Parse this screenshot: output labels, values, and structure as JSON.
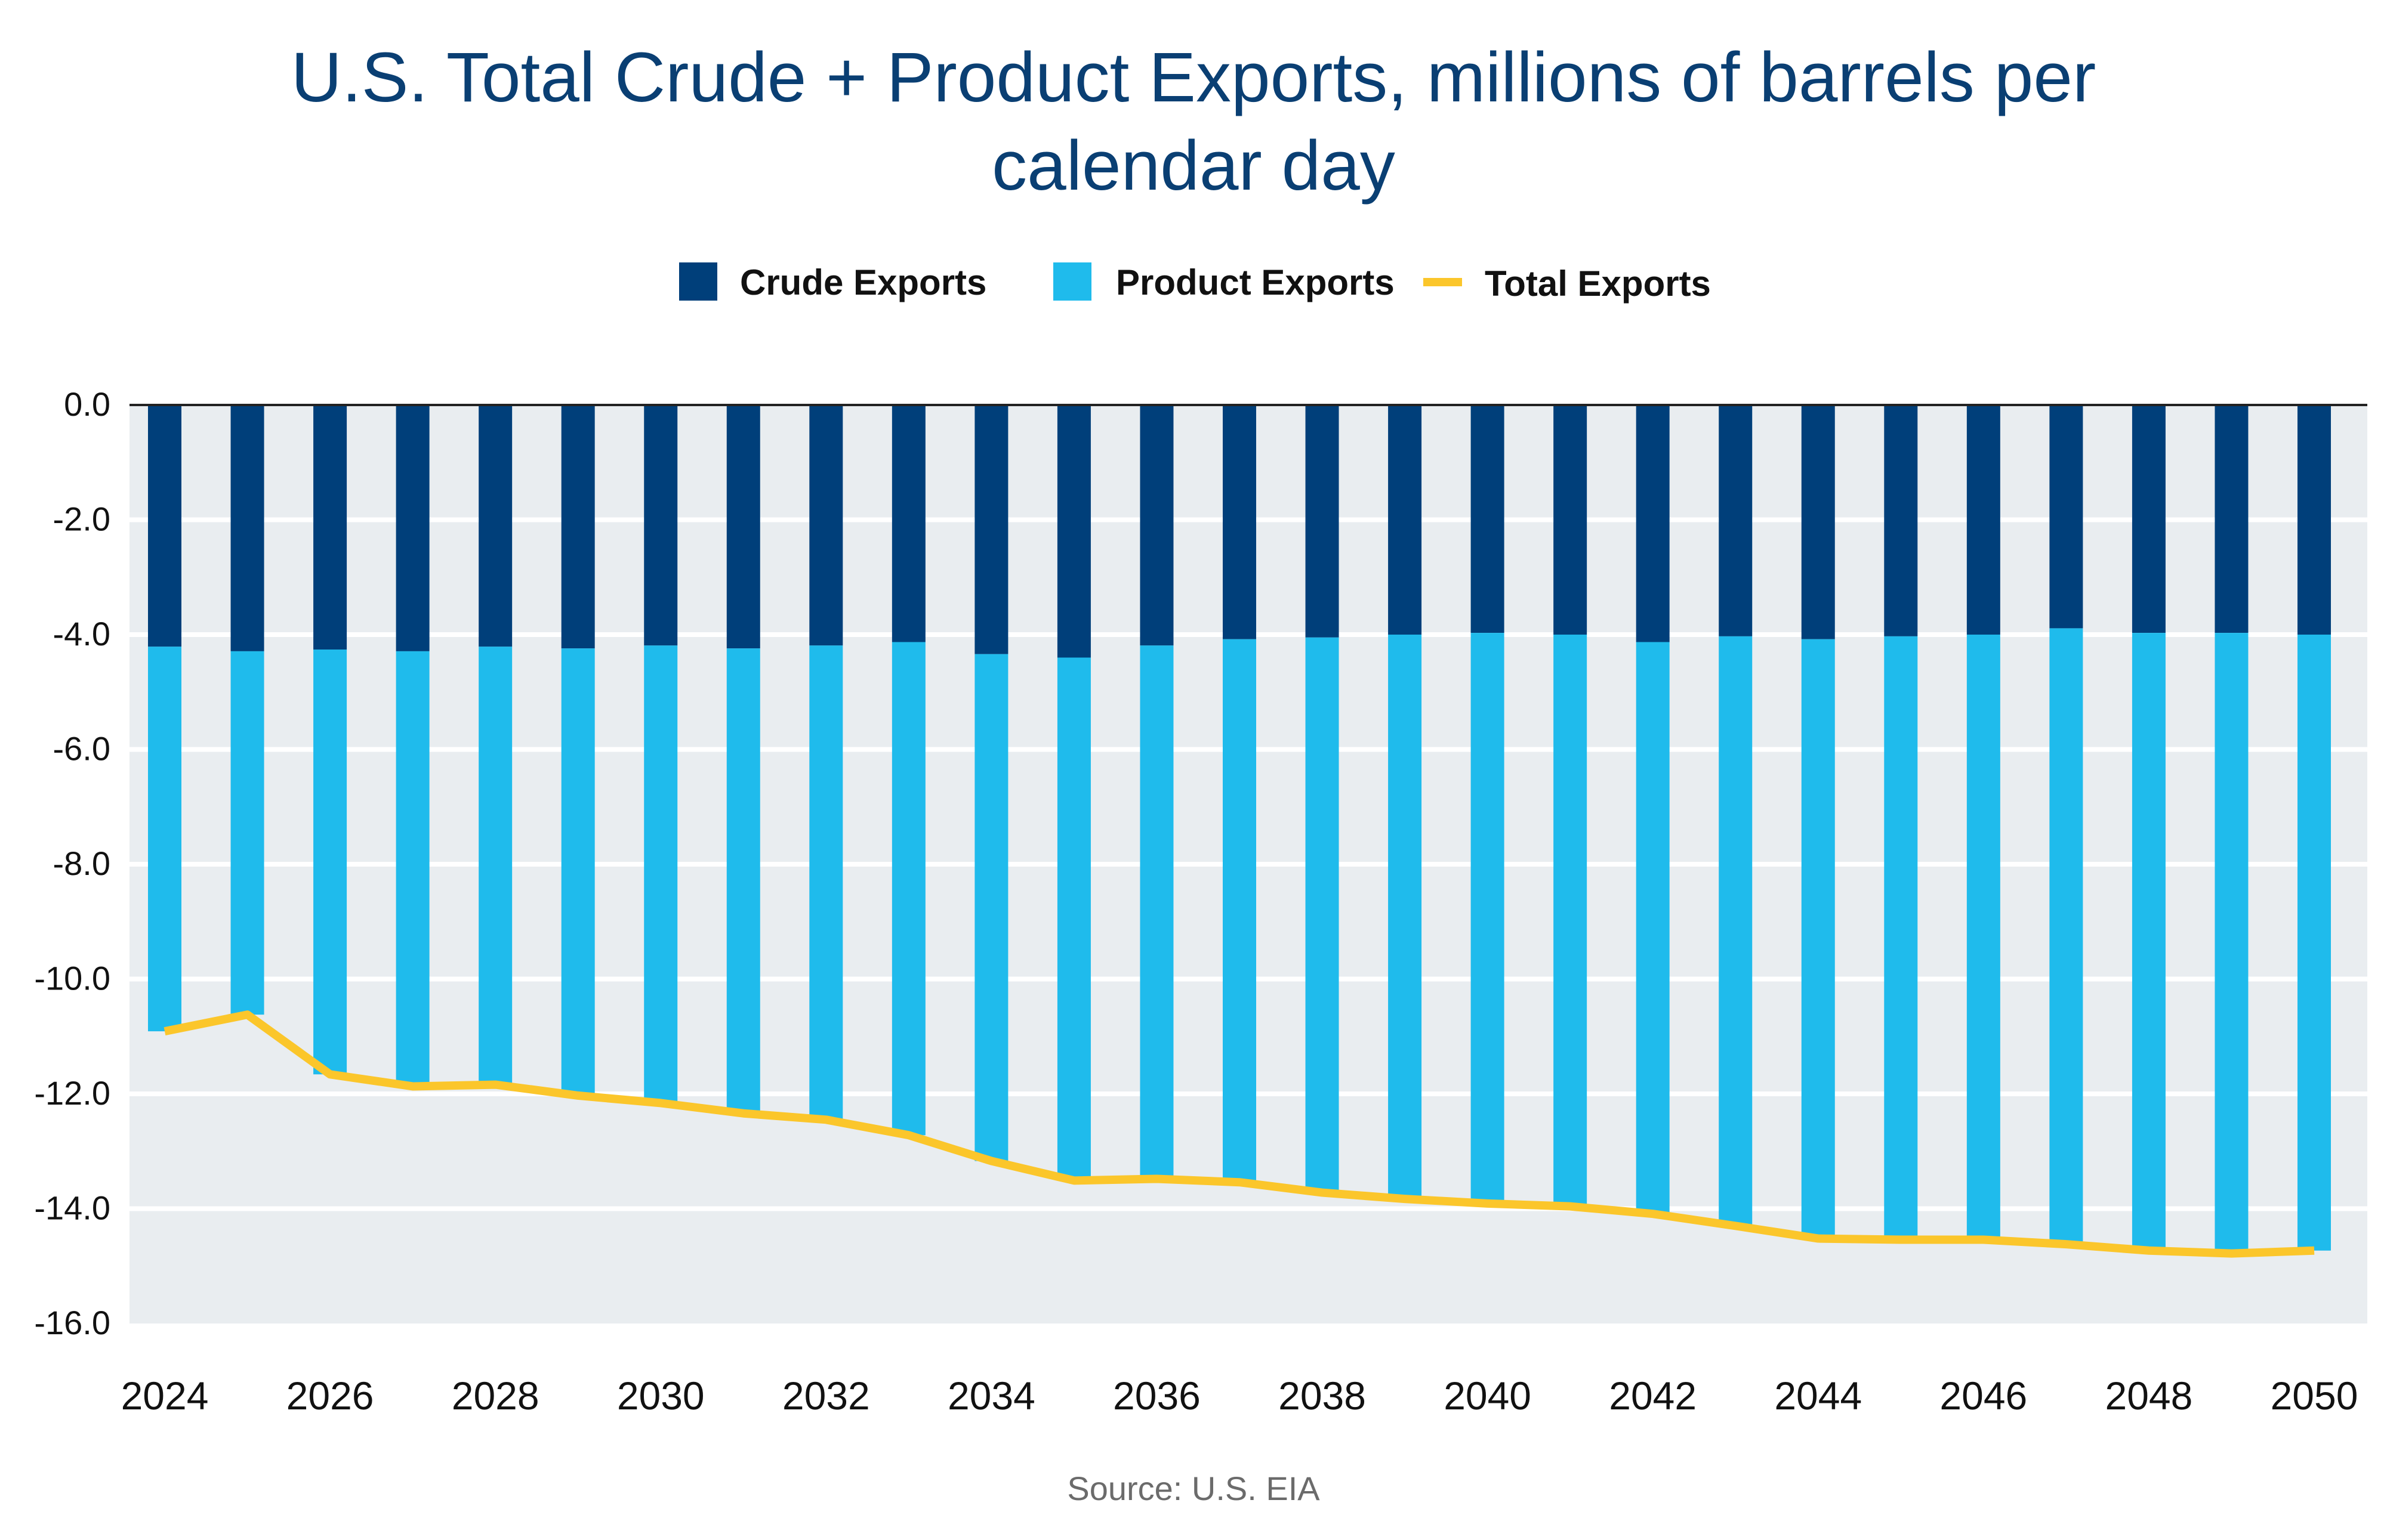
{
  "chart_data": {
    "type": "bar",
    "stacked": true,
    "title_lines": [
      "U.S.  Total Crude + Product Exports, millions of barrels per",
      "calendar day"
    ],
    "source": "Source: U.S. EIA",
    "xlabel": "",
    "ylabel": "",
    "ylim": [
      -16,
      0
    ],
    "yticks": [
      "0.0",
      "-2.0",
      "-4.0",
      "-6.0",
      "-8.0",
      "-10.0",
      "-12.0",
      "-14.0",
      "-16.0"
    ],
    "ytick_values": [
      0,
      -2,
      -4,
      -6,
      -8,
      -10,
      -12,
      -14,
      -16
    ],
    "grid": true,
    "legend_placement": "top",
    "categories": [
      2024,
      2025,
      2026,
      2027,
      2028,
      2029,
      2030,
      2031,
      2032,
      2033,
      2034,
      2035,
      2036,
      2037,
      2038,
      2039,
      2040,
      2041,
      2042,
      2043,
      2044,
      2045,
      2046,
      2047,
      2048,
      2049,
      2050
    ],
    "xtick_labels": [
      "2024",
      "2026",
      "2028",
      "2030",
      "2032",
      "2034",
      "2036",
      "2038",
      "2040",
      "2042",
      "2044",
      "2046",
      "2048",
      "2050"
    ],
    "series": [
      {
        "name": "Crude Exports",
        "kind": "bar",
        "color": "#003f7a",
        "values": [
          -4.21,
          -4.29,
          -4.26,
          -4.29,
          -4.21,
          -4.24,
          -4.19,
          -4.24,
          -4.19,
          -4.13,
          -4.34,
          -4.4,
          -4.19,
          -4.08,
          -4.05,
          -4.0,
          -3.97,
          -4.0,
          -4.13,
          -4.03,
          -4.08,
          -4.03,
          -4.0,
          -3.89,
          -3.97,
          -3.97,
          -4.0
        ]
      },
      {
        "name": "Product Exports",
        "kind": "bar",
        "color": "#1fbbec",
        "values": [
          -6.7,
          -6.33,
          -7.4,
          -7.58,
          -7.63,
          -7.79,
          -7.97,
          -8.1,
          -8.26,
          -8.59,
          -8.83,
          -9.11,
          -9.29,
          -9.46,
          -9.67,
          -9.83,
          -9.94,
          -9.96,
          -9.96,
          -10.27,
          -10.44,
          -10.51,
          -10.54,
          -10.73,
          -10.76,
          -10.81,
          -10.73
        ]
      },
      {
        "name": "Total Exports",
        "kind": "line",
        "color": "#fbc62b",
        "values": [
          -10.91,
          -10.62,
          -11.66,
          -11.87,
          -11.84,
          -12.03,
          -12.16,
          -12.34,
          -12.45,
          -12.72,
          -13.17,
          -13.51,
          -13.48,
          -13.54,
          -13.72,
          -13.83,
          -13.91,
          -13.96,
          -14.09,
          -14.3,
          -14.52,
          -14.54,
          -14.54,
          -14.62,
          -14.73,
          -14.78,
          -14.73
        ]
      }
    ],
    "colors": {
      "plot_background": "#e9edf0",
      "title": "#0a3f73"
    }
  }
}
